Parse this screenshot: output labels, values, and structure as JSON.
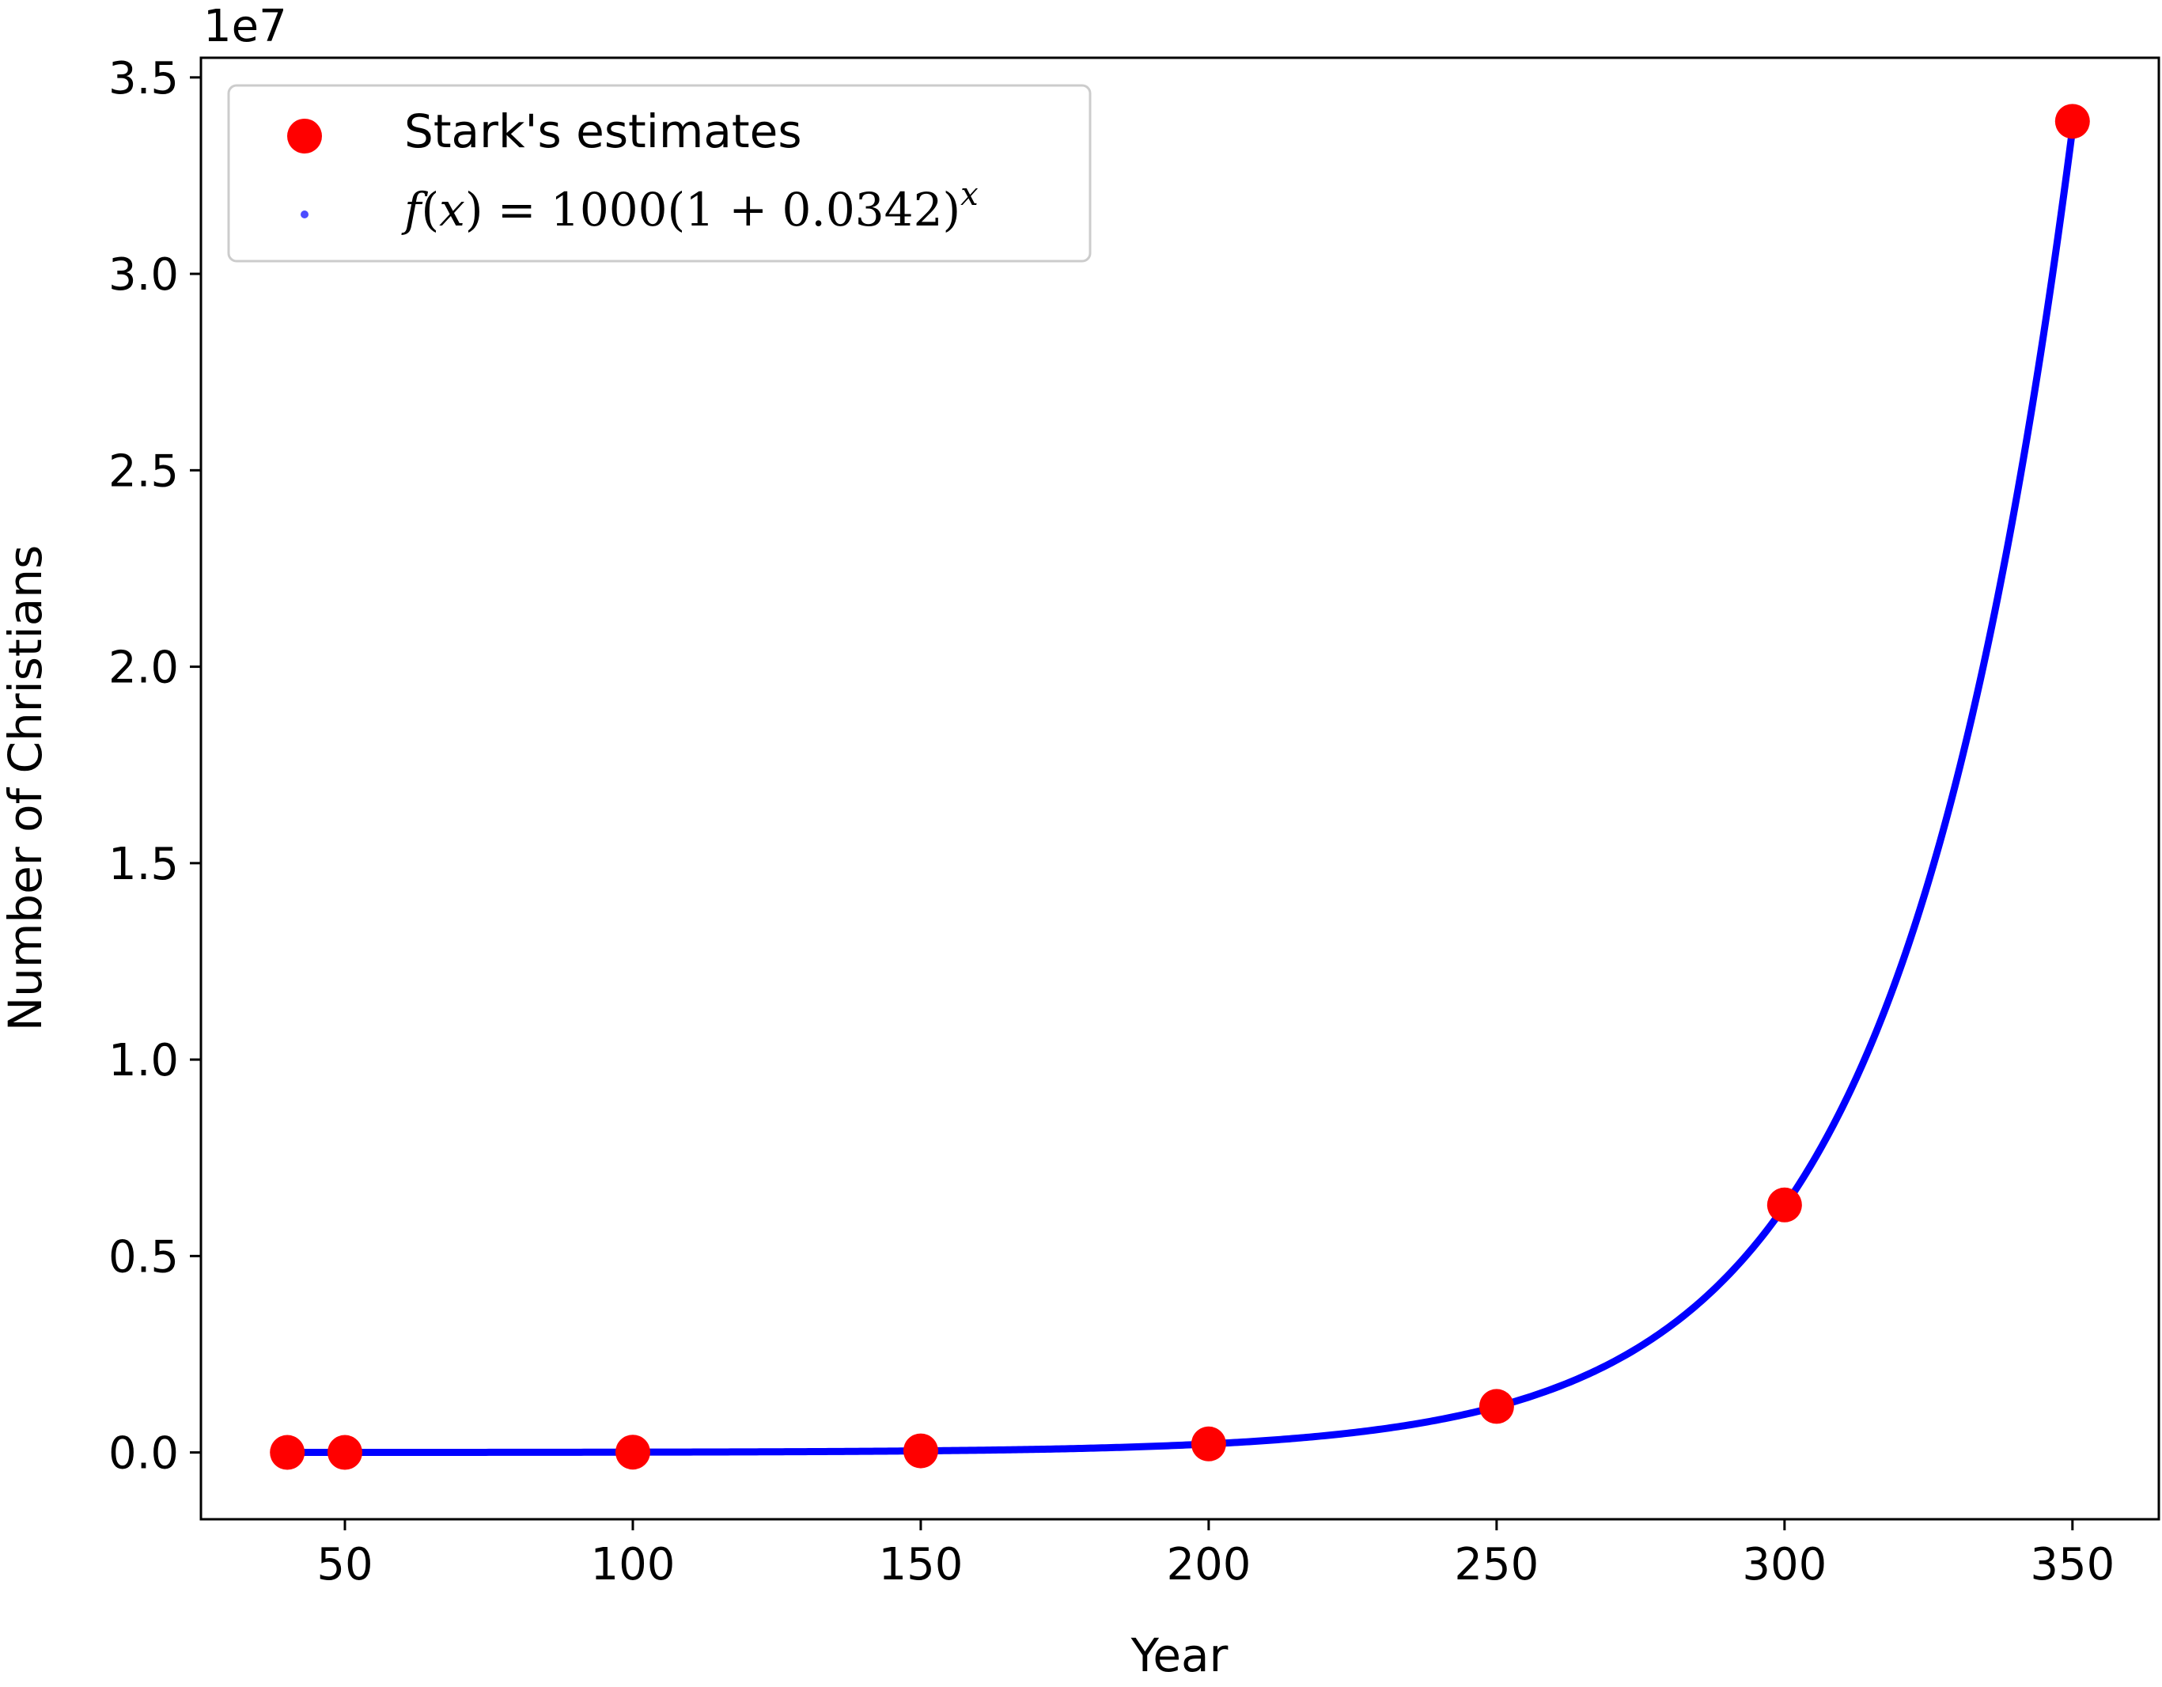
{
  "chart_data": {
    "type": "scatter",
    "xlabel": "Year",
    "ylabel": "Number of Christians",
    "y_offset_text": "1e7",
    "y_scale_factor": 10000000,
    "xlim": [
      25,
      365
    ],
    "ylim": [
      -1700000,
      35500000
    ],
    "x_ticks": [
      50,
      100,
      150,
      200,
      250,
      300,
      350
    ],
    "x_tick_labels": [
      "50",
      "100",
      "150",
      "200",
      "250",
      "300",
      "350"
    ],
    "y_ticks": [
      0,
      5000000,
      10000000,
      15000000,
      20000000,
      25000000,
      30000000,
      35000000
    ],
    "y_tick_labels": [
      "0.0",
      "0.5",
      "1.0",
      "1.5",
      "2.0",
      "2.5",
      "3.0",
      "3.5"
    ],
    "grid": false,
    "legend_position": "top-left",
    "series": [
      {
        "name": "Stark's estimates",
        "kind": "scatter",
        "color": "#ff0000",
        "x": [
          40,
          50,
          100,
          150,
          200,
          250,
          300,
          350
        ],
        "y": [
          1000,
          1400,
          7530,
          40496,
          217795,
          1171356,
          6299832,
          33882008
        ]
      },
      {
        "name": "f(x) = 1000(1 + 0.0342)^x",
        "kind": "line",
        "color": "#0000ff",
        "function": {
          "a": 1000,
          "r": 0.0342,
          "x_start": 40,
          "x_end": 350,
          "x_shift": 40
        }
      }
    ],
    "legend": {
      "entry1": "Stark's estimates",
      "entry2_prefix_italic": "f",
      "entry2_paren": "(",
      "entry2_var": "x",
      "entry2_eq": ") = 1000(1 + 0.0342)",
      "entry2_exp": "x"
    }
  }
}
